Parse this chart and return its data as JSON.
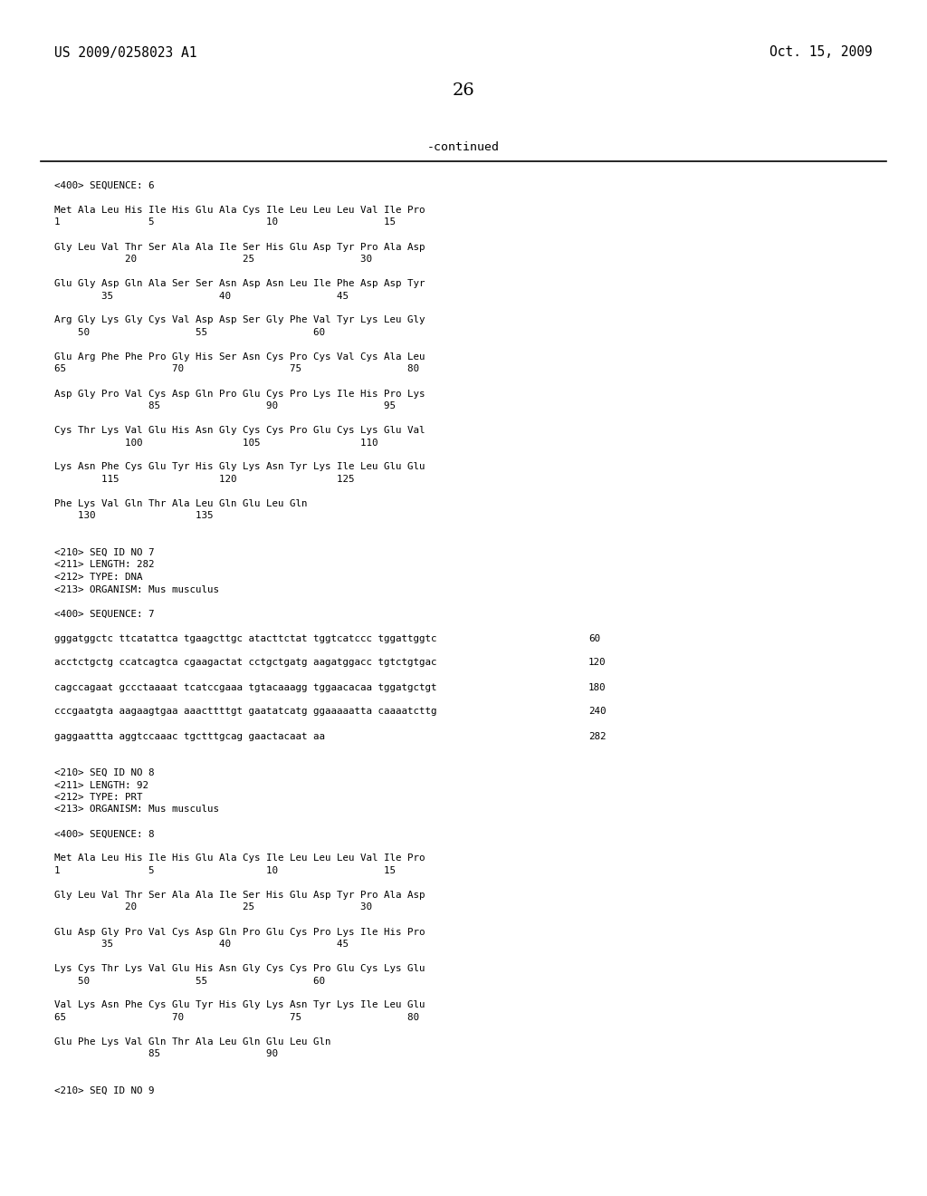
{
  "header_left": "US 2009/0258023 A1",
  "header_right": "Oct. 15, 2009",
  "page_number": "26",
  "continued_label": "-continued",
  "background_color": "#ffffff",
  "text_color": "#000000",
  "content": [
    {
      "type": "seq_header",
      "text": "<400> SEQUENCE: 6"
    },
    {
      "type": "blank"
    },
    {
      "type": "aa_seq",
      "line1": "Met Ala Leu His Ile His Glu Ala Cys Ile Leu Leu Leu Val Ile Pro",
      "line2": "1               5                   10                  15"
    },
    {
      "type": "blank"
    },
    {
      "type": "aa_seq",
      "line1": "Gly Leu Val Thr Ser Ala Ala Ile Ser His Glu Asp Tyr Pro Ala Asp",
      "line2": "            20                  25                  30"
    },
    {
      "type": "blank"
    },
    {
      "type": "aa_seq",
      "line1": "Glu Gly Asp Gln Ala Ser Ser Asn Asp Asn Leu Ile Phe Asp Asp Tyr",
      "line2": "        35                  40                  45"
    },
    {
      "type": "blank"
    },
    {
      "type": "aa_seq",
      "line1": "Arg Gly Lys Gly Cys Val Asp Asp Ser Gly Phe Val Tyr Lys Leu Gly",
      "line2": "    50                  55                  60"
    },
    {
      "type": "blank"
    },
    {
      "type": "aa_seq",
      "line1": "Glu Arg Phe Phe Pro Gly His Ser Asn Cys Pro Cys Val Cys Ala Leu",
      "line2": "65                  70                  75                  80"
    },
    {
      "type": "blank"
    },
    {
      "type": "aa_seq",
      "line1": "Asp Gly Pro Val Cys Asp Gln Pro Glu Cys Pro Lys Ile His Pro Lys",
      "line2": "                85                  90                  95"
    },
    {
      "type": "blank"
    },
    {
      "type": "aa_seq",
      "line1": "Cys Thr Lys Val Glu His Asn Gly Cys Cys Pro Glu Cys Lys Glu Val",
      "line2": "            100                 105                 110"
    },
    {
      "type": "blank"
    },
    {
      "type": "aa_seq",
      "line1": "Lys Asn Phe Cys Glu Tyr His Gly Lys Asn Tyr Lys Ile Leu Glu Glu",
      "line2": "        115                 120                 125"
    },
    {
      "type": "blank"
    },
    {
      "type": "aa_seq",
      "line1": "Phe Lys Val Gln Thr Ala Leu Gln Glu Leu Gln",
      "line2": "    130                 135"
    },
    {
      "type": "blank"
    },
    {
      "type": "blank"
    },
    {
      "type": "meta",
      "text": "<210> SEQ ID NO 7"
    },
    {
      "type": "meta",
      "text": "<211> LENGTH: 282"
    },
    {
      "type": "meta",
      "text": "<212> TYPE: DNA"
    },
    {
      "type": "meta",
      "text": "<213> ORGANISM: Mus musculus"
    },
    {
      "type": "blank"
    },
    {
      "type": "seq_header",
      "text": "<400> SEQUENCE: 7"
    },
    {
      "type": "blank"
    },
    {
      "type": "dna_seq",
      "line": "gggatggctc ttcatattca tgaagcttgc atacttctat tggtcatccc tggattggtc",
      "num": "60"
    },
    {
      "type": "blank"
    },
    {
      "type": "dna_seq",
      "line": "acctctgctg ccatcagtca cgaagactat cctgctgatg aagatggacc tgtctgtgac",
      "num": "120"
    },
    {
      "type": "blank"
    },
    {
      "type": "dna_seq",
      "line": "cagccagaat gccctaaaat tcatccgaaa tgtacaaagg tggaacacaa tggatgctgt",
      "num": "180"
    },
    {
      "type": "blank"
    },
    {
      "type": "dna_seq",
      "line": "cccgaatgta aagaagtgaa aaacttttgt gaatatcatg ggaaaaatta caaaatcttg",
      "num": "240"
    },
    {
      "type": "blank"
    },
    {
      "type": "dna_seq",
      "line": "gaggaattta aggtccaaac tgctttgcag gaactacaat aa",
      "num": "282"
    },
    {
      "type": "blank"
    },
    {
      "type": "blank"
    },
    {
      "type": "meta",
      "text": "<210> SEQ ID NO 8"
    },
    {
      "type": "meta",
      "text": "<211> LENGTH: 92"
    },
    {
      "type": "meta",
      "text": "<212> TYPE: PRT"
    },
    {
      "type": "meta",
      "text": "<213> ORGANISM: Mus musculus"
    },
    {
      "type": "blank"
    },
    {
      "type": "seq_header",
      "text": "<400> SEQUENCE: 8"
    },
    {
      "type": "blank"
    },
    {
      "type": "aa_seq",
      "line1": "Met Ala Leu His Ile His Glu Ala Cys Ile Leu Leu Leu Val Ile Pro",
      "line2": "1               5                   10                  15"
    },
    {
      "type": "blank"
    },
    {
      "type": "aa_seq",
      "line1": "Gly Leu Val Thr Ser Ala Ala Ile Ser His Glu Asp Tyr Pro Ala Asp",
      "line2": "            20                  25                  30"
    },
    {
      "type": "blank"
    },
    {
      "type": "aa_seq",
      "line1": "Glu Asp Gly Pro Val Cys Asp Gln Pro Glu Cys Pro Lys Ile His Pro",
      "line2": "        35                  40                  45"
    },
    {
      "type": "blank"
    },
    {
      "type": "aa_seq",
      "line1": "Lys Cys Thr Lys Val Glu His Asn Gly Cys Cys Pro Glu Cys Lys Glu",
      "line2": "    50                  55                  60"
    },
    {
      "type": "blank"
    },
    {
      "type": "aa_seq",
      "line1": "Val Lys Asn Phe Cys Glu Tyr His Gly Lys Asn Tyr Lys Ile Leu Glu",
      "line2": "65                  70                  75                  80"
    },
    {
      "type": "blank"
    },
    {
      "type": "aa_seq",
      "line1": "Glu Phe Lys Val Gln Thr Ala Leu Gln Glu Leu Gln",
      "line2": "                85                  90"
    },
    {
      "type": "blank"
    },
    {
      "type": "blank"
    },
    {
      "type": "meta",
      "text": "<210> SEQ ID NO 9"
    }
  ]
}
